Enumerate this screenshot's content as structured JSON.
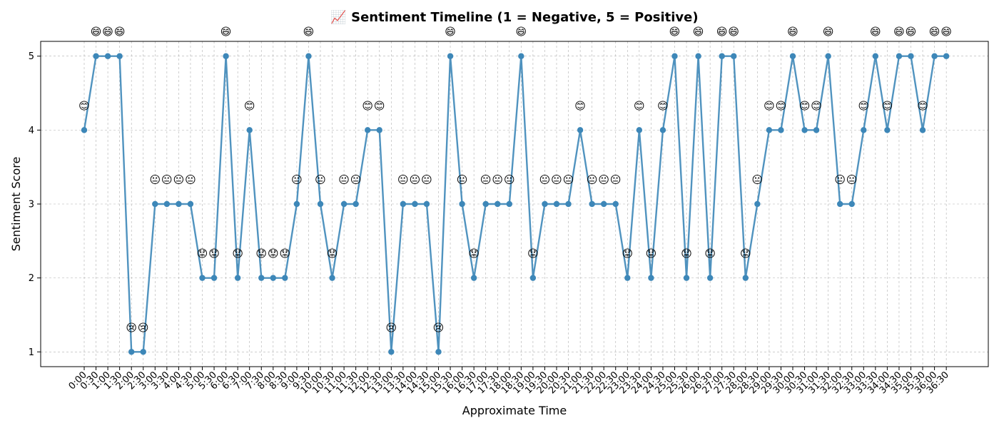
{
  "chart_data": {
    "type": "line",
    "title": "📈 Sentiment Timeline (1 = Negative, 5 = Positive)",
    "xlabel": "Approximate Time",
    "ylabel": "Sentiment Score",
    "ylim": [
      0.8,
      5.2
    ],
    "yticks": [
      1,
      2,
      3,
      4,
      5
    ],
    "grid": true,
    "line_color": "#3d87b8",
    "categories": [
      "0:00",
      "0:30",
      "1:00",
      "1:30",
      "2:00",
      "2:30",
      "3:00",
      "3:30",
      "4:00",
      "4:30",
      "5:00",
      "5:30",
      "6:00",
      "6:30",
      "7:00",
      "7:30",
      "8:00",
      "8:30",
      "9:00",
      "9:30",
      "10:00",
      "10:30",
      "11:00",
      "11:30",
      "12:00",
      "12:30",
      "13:00",
      "13:30",
      "14:00",
      "14:30",
      "15:00",
      "15:30",
      "16:00",
      "16:30",
      "17:00",
      "17:30",
      "18:00",
      "18:30",
      "19:00",
      "19:30",
      "20:00",
      "20:30",
      "21:00",
      "21:30",
      "22:00",
      "22:30",
      "23:00",
      "23:30",
      "24:00",
      "24:30",
      "25:00",
      "25:30",
      "26:00",
      "26:30",
      "27:00",
      "27:30",
      "28:00",
      "28:30",
      "29:00",
      "29:30",
      "30:00",
      "30:30",
      "31:00",
      "31:30",
      "32:00",
      "32:30",
      "33:00",
      "33:30",
      "34:00",
      "34:30",
      "35:00",
      "35:30",
      "36:00",
      "36:30"
    ],
    "series": [
      {
        "values": [
          4,
          5,
          5,
          5,
          1,
          1,
          3,
          3,
          3,
          3,
          2,
          2,
          5,
          2,
          4,
          2,
          2,
          2,
          3,
          5,
          3,
          2,
          3,
          3,
          4,
          4,
          1,
          3,
          3,
          3,
          1,
          5,
          3,
          2,
          3,
          3,
          3,
          5,
          2,
          3,
          3,
          3,
          4,
          3,
          3,
          3,
          2,
          4,
          2,
          4,
          5,
          2,
          5,
          2,
          5,
          5,
          2,
          3,
          4,
          4,
          5,
          4,
          4,
          5,
          3,
          3,
          4,
          5,
          4,
          5,
          5,
          4,
          5,
          5
        ]
      }
    ],
    "emoji_map": {
      "1": "😢",
      "2": "😟",
      "3": "😐",
      "4": "😊",
      "5": "😄"
    }
  }
}
